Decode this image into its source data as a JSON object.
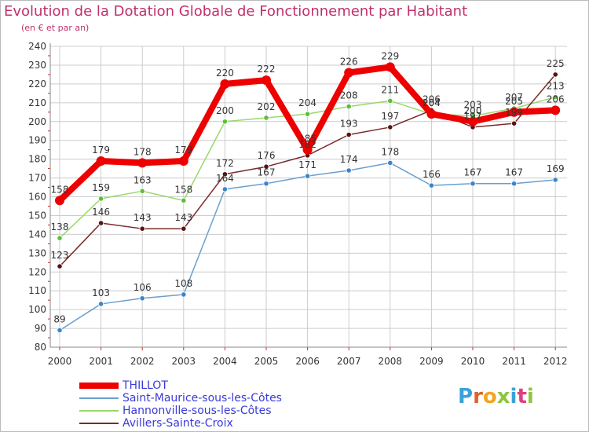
{
  "title": "Evolution de la Dotation Globale de Fonctionnement par Habitant",
  "subtitle": "(en € et par an)",
  "brand": {
    "name": "Proxiti",
    "letter_colors": [
      "#3aa1d8",
      "#e0612b",
      "#f2a51e",
      "#8cc63f",
      "#3aa1d8",
      "#e23f7c",
      "#8cc63f"
    ]
  },
  "colors": {
    "title": "#c0306a",
    "grid": "#cccccc",
    "axis": "#888888",
    "tick_label": "#333333",
    "legend_label": "#3a3ad8",
    "tick_mark": "#e02020"
  },
  "chart_data": {
    "type": "line",
    "title": "Evolution de la Dotation Globale de Fonctionnement par Habitant",
    "subtitle": "(en € et par an)",
    "xlabel": "",
    "ylabel": "",
    "x": [
      "2000",
      "2001",
      "2002",
      "2003",
      "2004",
      "2005",
      "2006",
      "2007",
      "2008",
      "2009",
      "2010",
      "2011",
      "2012"
    ],
    "yticks": [
      80,
      90,
      100,
      110,
      120,
      130,
      140,
      150,
      160,
      170,
      180,
      190,
      200,
      210,
      220,
      230,
      240
    ],
    "ylim": [
      80,
      240
    ],
    "grid": true,
    "legend_position": "bottom-left",
    "series": [
      {
        "name": "THILLOT",
        "color": "#ee0000",
        "style": "thick",
        "labels_above": true,
        "values": [
          158,
          179,
          178,
          179,
          220,
          222,
          185,
          226,
          229,
          204,
          200,
          205,
          206
        ]
      },
      {
        "name": "Saint-Maurice-sous-les-Côtes",
        "color": "#6a9fd0",
        "marker_color": "#3a86c8",
        "style": "thin",
        "labels_above": true,
        "values": [
          89,
          103,
          106,
          108,
          164,
          167,
          171,
          174,
          178,
          166,
          167,
          167,
          169
        ]
      },
      {
        "name": "Hannonville-sous-les-Côtes",
        "color": "#99d86a",
        "marker_color": "#5cc036",
        "style": "thin",
        "labels_above": true,
        "values": [
          138,
          159,
          163,
          158,
          200,
          202,
          204,
          208,
          211,
          204,
          203,
          207,
          213
        ]
      },
      {
        "name": "Avillers-Sainte-Croix",
        "color": "#7a2a2a",
        "marker_color": "#5a1212",
        "style": "thin",
        "labels_above": true,
        "values": [
          123,
          146,
          143,
          143,
          172,
          176,
          182,
          193,
          197,
          206,
          197,
          199,
          225
        ]
      }
    ]
  }
}
